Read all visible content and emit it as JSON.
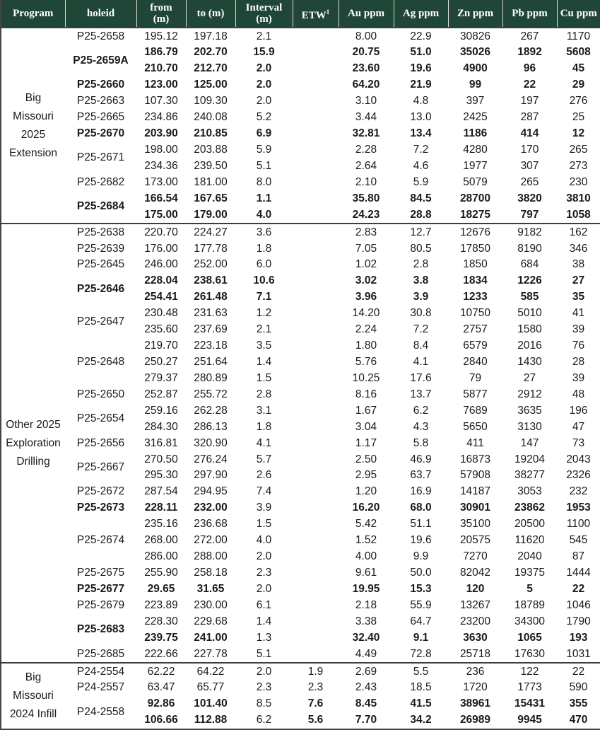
{
  "header": {
    "columns": [
      "Program",
      "holeid",
      "from\n(m)",
      "to (m)",
      "Interval\n(m)",
      "ETW",
      "Au ppm",
      "Ag ppm",
      "Zn ppm",
      "Pb ppm",
      "Cu ppm"
    ],
    "etw_sup": "1"
  },
  "colors": {
    "header_bg": "#1f4637",
    "header_text": "#ffffff",
    "body_text": "#1a1a1a",
    "group_separator": "#3d3d3d"
  },
  "groups": [
    {
      "program": "Big\nMissouri\n2025\nExtension",
      "holes": [
        {
          "id": "P25-2658",
          "id_bold": false,
          "rows": [
            {
              "from": "195.12",
              "to": "197.18",
              "interval": "2.1",
              "etw": "",
              "au": "8.00",
              "ag": "22.9",
              "zn": "30826",
              "pb": "267",
              "cu": "1170",
              "bold": false
            }
          ]
        },
        {
          "id": "P25-2659A",
          "id_bold": true,
          "rows": [
            {
              "from": "186.79",
              "to": "202.70",
              "interval": "15.9",
              "etw": "",
              "au": "20.75",
              "ag": "51.0",
              "zn": "35026",
              "pb": "1892",
              "cu": "5608",
              "bold": true
            },
            {
              "from": "210.70",
              "to": "212.70",
              "interval": "2.0",
              "etw": "",
              "au": "23.60",
              "ag": "19.6",
              "zn": "4900",
              "pb": "96",
              "cu": "45",
              "bold": true
            }
          ]
        },
        {
          "id": "P25-2660",
          "id_bold": true,
          "rows": [
            {
              "from": "123.00",
              "to": "125.00",
              "interval": "2.0",
              "etw": "",
              "au": "64.20",
              "ag": "21.9",
              "zn": "99",
              "pb": "22",
              "cu": "29",
              "bold": true
            }
          ]
        },
        {
          "id": "P25-2663",
          "id_bold": false,
          "rows": [
            {
              "from": "107.30",
              "to": "109.30",
              "interval": "2.0",
              "etw": "",
              "au": "3.10",
              "ag": "4.8",
              "zn": "397",
              "pb": "197",
              "cu": "276",
              "bold": false
            }
          ]
        },
        {
          "id": "P25-2665",
          "id_bold": false,
          "rows": [
            {
              "from": "234.86",
              "to": "240.08",
              "interval": "5.2",
              "etw": "",
              "au": "3.44",
              "ag": "13.0",
              "zn": "2425",
              "pb": "287",
              "cu": "25",
              "bold": false
            }
          ]
        },
        {
          "id": "P25-2670",
          "id_bold": true,
          "rows": [
            {
              "from": "203.90",
              "to": "210.85",
              "interval": "6.9",
              "etw": "",
              "au": "32.81",
              "ag": "13.4",
              "zn": "1186",
              "pb": "414",
              "cu": "12",
              "bold": true
            }
          ]
        },
        {
          "id": "P25-2671",
          "id_bold": false,
          "rows": [
            {
              "from": "198.00",
              "to": "203.88",
              "interval": "5.9",
              "etw": "",
              "au": "2.28",
              "ag": "7.2",
              "zn": "4280",
              "pb": "170",
              "cu": "265",
              "bold": false
            },
            {
              "from": "234.36",
              "to": "239.50",
              "interval": "5.1",
              "etw": "",
              "au": "2.64",
              "ag": "4.6",
              "zn": "1977",
              "pb": "307",
              "cu": "273",
              "bold": false
            }
          ]
        },
        {
          "id": "P25-2682",
          "id_bold": false,
          "rows": [
            {
              "from": "173.00",
              "to": "181.00",
              "interval": "8.0",
              "etw": "",
              "au": "2.10",
              "ag": "5.9",
              "zn": "5079",
              "pb": "265",
              "cu": "230",
              "bold": false
            }
          ]
        },
        {
          "id": "P25-2684",
          "id_bold": true,
          "rows": [
            {
              "from": "166.54",
              "to": "167.65",
              "interval": "1.1",
              "etw": "",
              "au": "35.80",
              "ag": "84.5",
              "zn": "28700",
              "pb": "3820",
              "cu": "3810",
              "bold": true
            },
            {
              "from": "175.00",
              "to": "179.00",
              "interval": "4.0",
              "etw": "",
              "au": "24.23",
              "ag": "28.8",
              "zn": "18275",
              "pb": "797",
              "cu": "1058",
              "bold": true
            }
          ]
        }
      ]
    },
    {
      "program": "Other 2025\nExploration\nDrilling",
      "holes": [
        {
          "id": "P25-2638",
          "id_bold": false,
          "rows": [
            {
              "from": "220.70",
              "to": "224.27",
              "interval": "3.6",
              "etw": "",
              "au": "2.83",
              "ag": "12.7",
              "zn": "12676",
              "pb": "9182",
              "cu": "162",
              "bold": false
            }
          ]
        },
        {
          "id": "P25-2639",
          "id_bold": false,
          "rows": [
            {
              "from": "176.00",
              "to": "177.78",
              "interval": "1.8",
              "etw": "",
              "au": "7.05",
              "ag": "80.5",
              "zn": "17850",
              "pb": "8190",
              "cu": "346",
              "bold": false
            }
          ]
        },
        {
          "id": "P25-2645",
          "id_bold": false,
          "rows": [
            {
              "from": "246.00",
              "to": "252.00",
              "interval": "6.0",
              "etw": "",
              "au": "1.02",
              "ag": "2.8",
              "zn": "1850",
              "pb": "684",
              "cu": "38",
              "bold": false
            }
          ]
        },
        {
          "id": "P25-2646",
          "id_bold": true,
          "rows": [
            {
              "from": "228.04",
              "to": "238.61",
              "interval": "10.6",
              "etw": "",
              "au": "3.02",
              "ag": "3.8",
              "zn": "1834",
              "pb": "1226",
              "cu": "27",
              "bold": true
            },
            {
              "from": "254.41",
              "to": "261.48",
              "interval": "7.1",
              "etw": "",
              "au": "3.96",
              "ag": "3.9",
              "zn": "1233",
              "pb": "585",
              "cu": "35",
              "bold": true
            }
          ]
        },
        {
          "id": "P25-2647",
          "id_bold": false,
          "rows": [
            {
              "from": "230.48",
              "to": "231.63",
              "interval": "1.2",
              "etw": "",
              "au": "14.20",
              "ag": "30.8",
              "zn": "10750",
              "pb": "5010",
              "cu": "41",
              "bold": false
            },
            {
              "from": "235.60",
              "to": "237.69",
              "interval": "2.1",
              "etw": "",
              "au": "2.24",
              "ag": "7.2",
              "zn": "2757",
              "pb": "1580",
              "cu": "39",
              "bold": false
            }
          ]
        },
        {
          "id": "P25-2648",
          "id_bold": false,
          "rows": [
            {
              "from": "219.70",
              "to": "223.18",
              "interval": "3.5",
              "etw": "",
              "au": "1.80",
              "ag": "8.4",
              "zn": "6579",
              "pb": "2016",
              "cu": "76",
              "bold": false
            },
            {
              "from": "250.27",
              "to": "251.64",
              "interval": "1.4",
              "etw": "",
              "au": "5.76",
              "ag": "4.1",
              "zn": "2840",
              "pb": "1430",
              "cu": "28",
              "bold": false
            },
            {
              "from": "279.37",
              "to": "280.89",
              "interval": "1.5",
              "etw": "",
              "au": "10.25",
              "ag": "17.6",
              "zn": "79",
              "pb": "27",
              "cu": "39",
              "bold": false
            }
          ]
        },
        {
          "id": "P25-2650",
          "id_bold": false,
          "rows": [
            {
              "from": "252.87",
              "to": "255.72",
              "interval": "2.8",
              "etw": "",
              "au": "8.16",
              "ag": "13.7",
              "zn": "5877",
              "pb": "2912",
              "cu": "48",
              "bold": false
            }
          ]
        },
        {
          "id": "P25-2654",
          "id_bold": false,
          "rows": [
            {
              "from": "259.16",
              "to": "262.28",
              "interval": "3.1",
              "etw": "",
              "au": "1.67",
              "ag": "6.2",
              "zn": "7689",
              "pb": "3635",
              "cu": "196",
              "bold": false
            },
            {
              "from": "284.30",
              "to": "286.13",
              "interval": "1.8",
              "etw": "",
              "au": "3.04",
              "ag": "4.3",
              "zn": "5650",
              "pb": "3130",
              "cu": "47",
              "bold": false
            }
          ]
        },
        {
          "id": "P25-2656",
          "id_bold": false,
          "rows": [
            {
              "from": "316.81",
              "to": "320.90",
              "interval": "4.1",
              "etw": "",
              "au": "1.17",
              "ag": "5.8",
              "zn": "411",
              "pb": "147",
              "cu": "73",
              "bold": false
            }
          ]
        },
        {
          "id": "P25-2667",
          "id_bold": false,
          "rows": [
            {
              "from": "270.50",
              "to": "276.24",
              "interval": "5.7",
              "etw": "",
              "au": "2.50",
              "ag": "46.9",
              "zn": "16873",
              "pb": "19204",
              "cu": "2043",
              "bold": false
            },
            {
              "from": "295.30",
              "to": "297.90",
              "interval": "2.6",
              "etw": "",
              "au": "2.95",
              "ag": "63.7",
              "zn": "57908",
              "pb": "38277",
              "cu": "2326",
              "bold": false
            }
          ]
        },
        {
          "id": "P25-2672",
          "id_bold": false,
          "rows": [
            {
              "from": "287.54",
              "to": "294.95",
              "interval": "7.4",
              "etw": "",
              "au": "1.20",
              "ag": "16.9",
              "zn": "14187",
              "pb": "3053",
              "cu": "232",
              "bold": false
            }
          ]
        },
        {
          "id": "P25-2673",
          "id_bold": true,
          "rows": [
            {
              "from": "228.11",
              "to": "232.00",
              "interval": "3.9",
              "etw": "",
              "au": "16.20",
              "ag": "68.0",
              "zn": "30901",
              "pb": "23862",
              "cu": "1953",
              "bold": true,
              "interval_regular": true
            }
          ]
        },
        {
          "id": "P25-2674",
          "id_bold": false,
          "rows": [
            {
              "from": "235.16",
              "to": "236.68",
              "interval": "1.5",
              "etw": "",
              "au": "5.42",
              "ag": "51.1",
              "zn": "35100",
              "pb": "20500",
              "cu": "1100",
              "bold": false
            },
            {
              "from": "268.00",
              "to": "272.00",
              "interval": "4.0",
              "etw": "",
              "au": "1.52",
              "ag": "19.6",
              "zn": "20575",
              "pb": "11620",
              "cu": "545",
              "bold": false
            },
            {
              "from": "286.00",
              "to": "288.00",
              "interval": "2.0",
              "etw": "",
              "au": "4.00",
              "ag": "9.9",
              "zn": "7270",
              "pb": "2040",
              "cu": "87",
              "bold": false
            }
          ]
        },
        {
          "id": "P25-2675",
          "id_bold": false,
          "rows": [
            {
              "from": "255.90",
              "to": "258.18",
              "interval": "2.3",
              "etw": "",
              "au": "9.61",
              "ag": "50.0",
              "zn": "82042",
              "pb": "19375",
              "cu": "1444",
              "bold": false
            }
          ]
        },
        {
          "id": "P25-2677",
          "id_bold": true,
          "rows": [
            {
              "from": "29.65",
              "to": "31.65",
              "interval": "2.0",
              "etw": "",
              "au": "19.95",
              "ag": "15.3",
              "zn": "120",
              "pb": "5",
              "cu": "22",
              "bold": true,
              "interval_regular": true
            }
          ]
        },
        {
          "id": "P25-2679",
          "id_bold": false,
          "rows": [
            {
              "from": "223.89",
              "to": "230.00",
              "interval": "6.1",
              "etw": "",
              "au": "2.18",
              "ag": "55.9",
              "zn": "13267",
              "pb": "18789",
              "cu": "1046",
              "bold": false
            }
          ]
        },
        {
          "id": "P25-2683",
          "id_bold": true,
          "rows": [
            {
              "from": "228.30",
              "to": "229.68",
              "interval": "1.4",
              "etw": "",
              "au": "3.38",
              "ag": "64.7",
              "zn": "23200",
              "pb": "34300",
              "cu": "1790",
              "bold": false
            },
            {
              "from": "239.75",
              "to": "241.00",
              "interval": "1.3",
              "etw": "",
              "au": "32.40",
              "ag": "9.1",
              "zn": "3630",
              "pb": "1065",
              "cu": "193",
              "bold": true,
              "interval_regular": true
            }
          ]
        },
        {
          "id": "P25-2685",
          "id_bold": false,
          "rows": [
            {
              "from": "222.66",
              "to": "227.78",
              "interval": "5.1",
              "etw": "",
              "au": "4.49",
              "ag": "72.8",
              "zn": "25718",
              "pb": "17630",
              "cu": "1031",
              "bold": false
            }
          ]
        }
      ]
    },
    {
      "program": "Big\nMissouri\n2024 Infill",
      "holes": [
        {
          "id": "P24-2554",
          "id_bold": false,
          "rows": [
            {
              "from": "62.22",
              "to": "64.22",
              "interval": "2.0",
              "etw": "1.9",
              "au": "2.69",
              "ag": "5.5",
              "zn": "236",
              "pb": "122",
              "cu": "22",
              "bold": false
            }
          ]
        },
        {
          "id": "P24-2557",
          "id_bold": false,
          "rows": [
            {
              "from": "63.47",
              "to": "65.77",
              "interval": "2.3",
              "etw": "2.3",
              "au": "2.43",
              "ag": "18.5",
              "zn": "1720",
              "pb": "1773",
              "cu": "590",
              "bold": false
            }
          ]
        },
        {
          "id": "P24-2558",
          "id_bold": false,
          "rows": [
            {
              "from": "92.86",
              "to": "101.40",
              "interval": "8.5",
              "etw": "7.6",
              "au": "8.45",
              "ag": "41.5",
              "zn": "38961",
              "pb": "15431",
              "cu": "355",
              "bold": true,
              "interval_regular": true
            },
            {
              "from": "106.66",
              "to": "112.88",
              "interval": "6.2",
              "etw": "5.6",
              "au": "7.70",
              "ag": "34.2",
              "zn": "26989",
              "pb": "9945",
              "cu": "470",
              "bold": true,
              "interval_regular": true
            }
          ]
        }
      ]
    }
  ]
}
